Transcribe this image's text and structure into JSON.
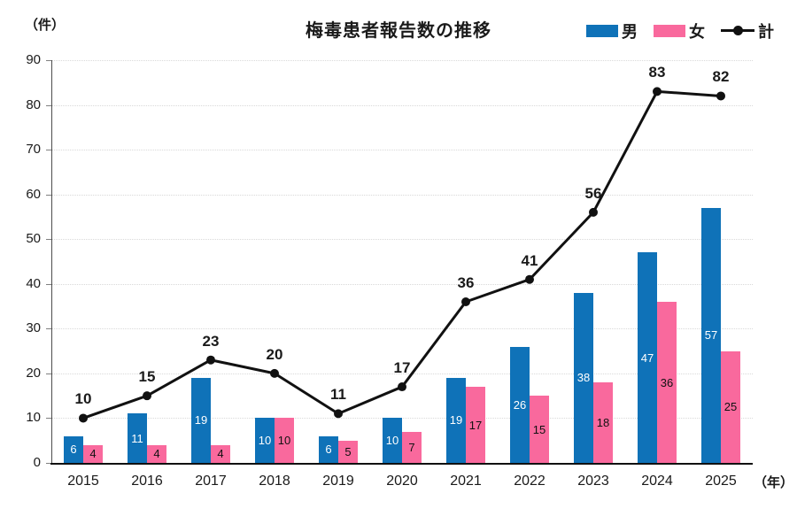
{
  "chart": {
    "title": "梅毒患者報告数の推移",
    "y_unit_label": "（件）",
    "x_unit_label": "（年）",
    "legend": {
      "male": "男",
      "female": "女",
      "total": "計"
    }
  },
  "chart_data": {
    "type": "bar+line",
    "title": "梅毒患者報告数の推移",
    "ylabel": "（件）",
    "xlabel": "（年）",
    "categories": [
      "2015",
      "2016",
      "2017",
      "2018",
      "2019",
      "2020",
      "2021",
      "2022",
      "2023",
      "2024",
      "2025"
    ],
    "series": [
      {
        "name": "男",
        "type": "bar",
        "color": "#0f72b8",
        "label_color": "#ffffff",
        "values": [
          6,
          11,
          19,
          10,
          6,
          10,
          19,
          26,
          38,
          47,
          57
        ]
      },
      {
        "name": "女",
        "type": "bar",
        "color": "#f9699d",
        "label_color": "#111111",
        "values": [
          4,
          4,
          4,
          10,
          5,
          7,
          17,
          15,
          18,
          36,
          25
        ]
      },
      {
        "name": "計",
        "type": "line",
        "color": "#111111",
        "values": [
          10,
          15,
          23,
          20,
          11,
          17,
          36,
          41,
          56,
          83,
          82
        ]
      }
    ],
    "ylim": [
      0,
      90
    ],
    "ytick_step": 10,
    "grid": true,
    "legend_position": "top-right",
    "colors": {
      "male": "#0f72b8",
      "female": "#f9699d",
      "total": "#111111",
      "grid": "#d9d9d9",
      "y_axis": "#4d4d4d",
      "x_axis": "#111111"
    }
  }
}
